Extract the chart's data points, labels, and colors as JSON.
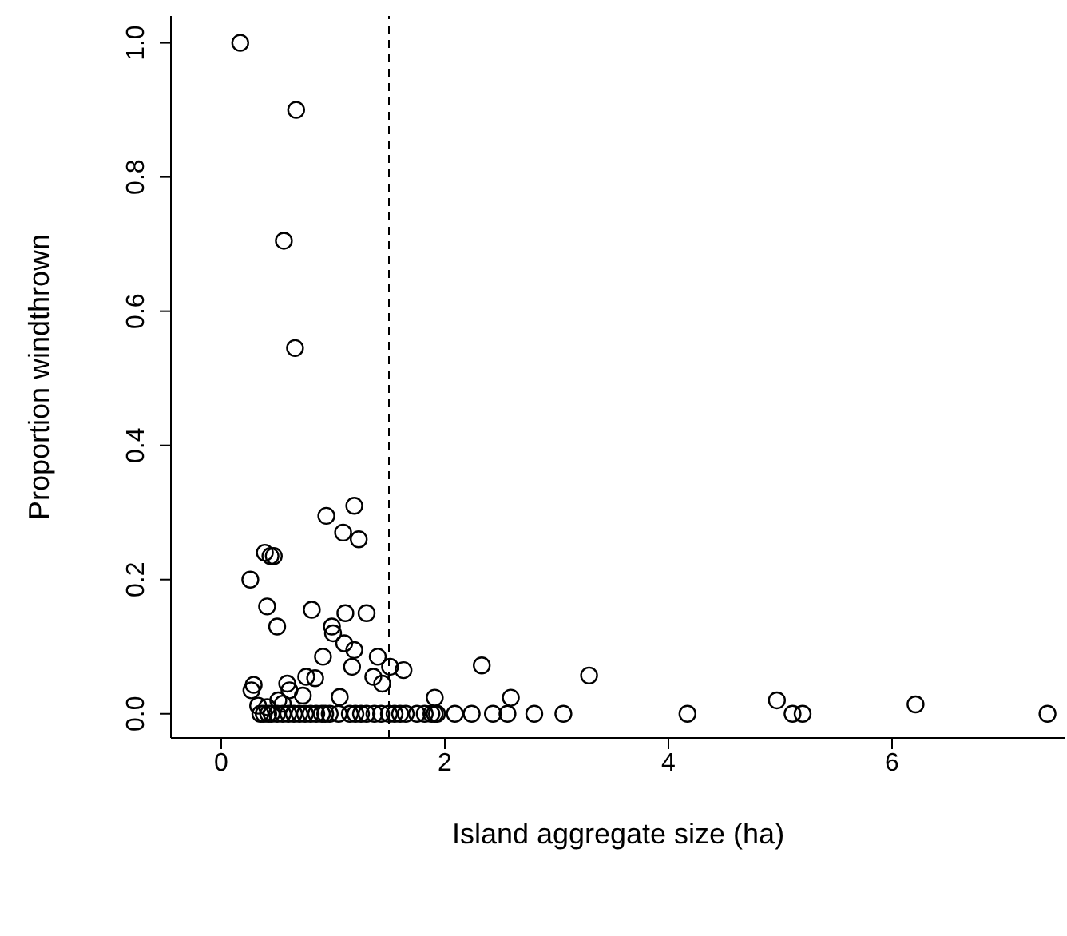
{
  "chart_data": {
    "type": "scatter",
    "xlabel": "Island aggregate size (ha)",
    "ylabel": "Proportion windthrown",
    "x": [
      0.17,
      0.67,
      0.56,
      0.66,
      0.94,
      1.19,
      1.09,
      1.23,
      0.39,
      0.44,
      0.47,
      0.26,
      0.41,
      0.5,
      0.81,
      1.11,
      1.3,
      0.99,
      1.0,
      1.1,
      1.19,
      0.91,
      1.4,
      1.17,
      1.36,
      1.51,
      1.63,
      2.33,
      3.29,
      0.29,
      0.27,
      0.59,
      0.76,
      0.84,
      0.73,
      0.61,
      0.51,
      1.06,
      1.44,
      1.91,
      2.59,
      4.97,
      6.21,
      0.33,
      0.41,
      0.55,
      1.91,
      2.09,
      2.24,
      2.43,
      2.56,
      2.8,
      3.06,
      4.17,
      5.11,
      5.2,
      7.39,
      0.35,
      0.38,
      0.42,
      0.45,
      0.5,
      0.55,
      0.6,
      0.65,
      0.7,
      0.75,
      0.8,
      0.85,
      0.9,
      0.93,
      0.97,
      1.05,
      1.15,
      1.2,
      1.25,
      1.3,
      1.37,
      1.43,
      1.5,
      1.55,
      1.6,
      1.65,
      1.75,
      1.82,
      1.88,
      1.93
    ],
    "values": [
      1.0,
      0.9,
      0.705,
      0.545,
      0.295,
      0.31,
      0.27,
      0.26,
      0.24,
      0.235,
      0.235,
      0.2,
      0.16,
      0.13,
      0.155,
      0.15,
      0.15,
      0.13,
      0.12,
      0.105,
      0.095,
      0.085,
      0.085,
      0.07,
      0.055,
      0.07,
      0.065,
      0.072,
      0.057,
      0.043,
      0.035,
      0.045,
      0.055,
      0.053,
      0.027,
      0.035,
      0.02,
      0.025,
      0.045,
      0.024,
      0.024,
      0.02,
      0.014,
      0.012,
      0.01,
      0.015,
      0.0,
      0.0,
      0.0,
      0.0,
      0.0,
      0.0,
      0.0,
      0.0,
      0.0,
      0.0,
      0.0,
      0.0,
      0.0,
      0.0,
      0.0,
      0.0,
      0.0,
      0.0,
      0.0,
      0.0,
      0.0,
      0.0,
      0.0,
      0.0,
      0.0,
      0.0,
      0.0,
      0.0,
      0.0,
      0.0,
      0.0,
      0.0,
      0.0,
      0.0,
      0.0,
      0.0,
      0.0,
      0.0,
      0.0,
      0.0,
      0.0
    ],
    "color": "#000000",
    "marker": "circle",
    "xlim": [
      -0.45,
      7.55
    ],
    "xticks": [
      0,
      2,
      4,
      6
    ],
    "ylim": [
      -0.036,
      1.04
    ],
    "yticks": [
      {
        "value": 0,
        "label": "0.0"
      },
      {
        "value": 0.2,
        "label": "0.2"
      },
      {
        "value": 0.4,
        "label": "0.4"
      },
      {
        "value": 0.6,
        "label": "0.6"
      },
      {
        "value": 0.8,
        "label": "0.8"
      },
      {
        "value": 1,
        "label": "1.0"
      }
    ],
    "ref_lines": [
      {
        "axis": "x",
        "value": 1.5,
        "line_style": "dashed"
      }
    ],
    "grid": false,
    "legend": false
  }
}
